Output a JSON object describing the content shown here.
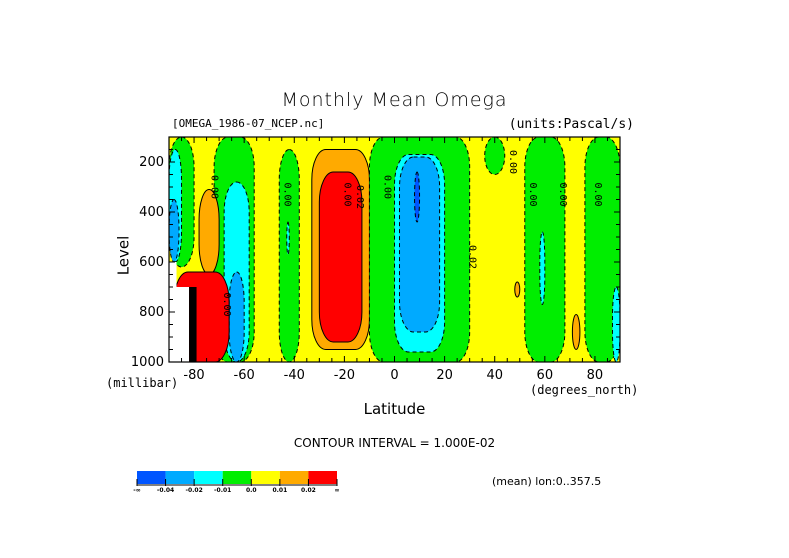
{
  "header": {
    "title": "Monthly Mean Omega",
    "file_label": "[OMEGA_1986-07_NCEP.nc]",
    "units_label": "(units:Pascal/s)"
  },
  "footer": {
    "contour_interval": "CONTOUR INTERVAL = 1.000E-02",
    "mean_lon": "(mean) lon:0..357.5"
  },
  "colors": {
    "lt_-0.04": "#0055ff",
    "-0.04_-0.02": "#00aaff",
    "-0.02_-0.01": "#00ffff",
    "-0.01_0.0": "#00ee00",
    "0.0_0.01": "#ffff00",
    "0.01_0.02": "#ffaa00",
    "gt_0.02": "#ff0000"
  },
  "chart_data": {
    "type": "heatmap",
    "subtype": "filled-contour",
    "title": "Monthly Mean Omega",
    "subtitle_left": "[OMEGA_1986-07_NCEP.nc]",
    "subtitle_right": "(units:Pascal/s)",
    "xlabel": "Latitude",
    "xunits": "(degrees_north)",
    "ylabel": "Level",
    "yunits": "(millibar)",
    "xlim": [
      -90,
      90
    ],
    "ylim": [
      1000,
      100
    ],
    "y_inverted": true,
    "xticks": [
      -80,
      -60,
      -40,
      -20,
      0,
      20,
      40,
      60,
      80
    ],
    "xtick_labels": [
      "-80",
      "-60",
      "-40",
      "-20",
      "0",
      "20",
      "40",
      "60",
      "80"
    ],
    "yticks": [
      200,
      400,
      600,
      800,
      1000
    ],
    "ytick_labels": [
      "200",
      "400",
      "600",
      "800",
      "1000"
    ],
    "contour_interval": 0.01,
    "contour_labels": [
      "0.00",
      "0.00",
      "0.00",
      "0.00",
      "0.02",
      "0.00",
      "0.02",
      "0.00",
      "0.00",
      "0.00",
      "0.00",
      "0.00",
      "0.00"
    ],
    "legend": {
      "type": "colorbar",
      "placement": "bottom-left",
      "boundaries": [
        "-∞",
        "-0.04",
        "-0.02",
        "-0.01",
        "0.0",
        "0.01",
        "0.02",
        "∞"
      ],
      "bins": [
        {
          "range": "< -0.04",
          "color": "#0055ff"
        },
        {
          "range": "-0.04 to -0.02",
          "color": "#00aaff"
        },
        {
          "range": "-0.02 to -0.01",
          "color": "#00ffff"
        },
        {
          "range": "-0.01 to 0.0",
          "color": "#00ee00"
        },
        {
          "range": "0.0 to 0.01",
          "color": "#ffff00"
        },
        {
          "range": "0.01 to 0.02",
          "color": "#ffaa00"
        },
        {
          "range": "> 0.02",
          "color": "#ff0000"
        }
      ]
    },
    "regions": [
      {
        "name": "background-yellow",
        "level": "0.0_0.01",
        "lat": [
          -90,
          90
        ],
        "p": [
          100,
          1000
        ]
      },
      {
        "name": "green-band-sh-polar",
        "level": "-0.01_0.0",
        "lat": [
          -90,
          -80
        ],
        "p": [
          100,
          620
        ]
      },
      {
        "name": "cyan-sh-polar",
        "level": "-0.02_-0.01",
        "lat": [
          -90,
          -85
        ],
        "p": [
          150,
          600
        ]
      },
      {
        "name": "blue-sh-polar",
        "level": "-0.04_-0.02",
        "lat": [
          -90,
          -86
        ],
        "p": [
          350,
          600
        ]
      },
      {
        "name": "green-band-70s",
        "level": "-0.01_0.0",
        "lat": [
          -72,
          -56
        ],
        "p": [
          100,
          1000
        ]
      },
      {
        "name": "orange-sh-75",
        "level": "0.01_0.02",
        "lat": [
          -78,
          -70
        ],
        "p": [
          310,
          650
        ]
      },
      {
        "name": "cyan-sh-62",
        "level": "-0.02_-0.01",
        "lat": [
          -68,
          -58
        ],
        "p": [
          280,
          1000
        ]
      },
      {
        "name": "blue-sh-62",
        "level": "-0.04_-0.02",
        "lat": [
          -66,
          -60
        ],
        "p": [
          640,
          1000
        ]
      },
      {
        "name": "red-sh-antarctic",
        "level": "gt_0.02",
        "lat": [
          -88,
          -66
        ],
        "p": [
          640,
          1000
        ]
      },
      {
        "name": "green-band-45",
        "level": "-0.01_0.0",
        "lat": [
          -46,
          -38
        ],
        "p": [
          150,
          1000
        ]
      },
      {
        "name": "cyan-sh-43",
        "level": "-0.02_-0.01",
        "lat": [
          -43,
          -42
        ],
        "p": [
          440,
          570
        ]
      },
      {
        "name": "orange-sh-25",
        "level": "0.01_0.02",
        "lat": [
          -33,
          -10
        ],
        "p": [
          150,
          950
        ]
      },
      {
        "name": "red-sh-25",
        "level": "gt_0.02",
        "lat": [
          -30,
          -13
        ],
        "p": [
          240,
          920
        ]
      },
      {
        "name": "green-tropics",
        "level": "-0.01_0.0",
        "lat": [
          -10,
          30
        ],
        "p": [
          100,
          1000
        ]
      },
      {
        "name": "cyan-tropics",
        "level": "-0.02_-0.01",
        "lat": [
          0,
          20
        ],
        "p": [
          170,
          960
        ]
      },
      {
        "name": "blue-tropics",
        "level": "-0.04_-0.02",
        "lat": [
          2,
          18
        ],
        "p": [
          180,
          880
        ]
      },
      {
        "name": "dark-blue-tropics",
        "level": "lt_-0.04",
        "lat": [
          8,
          10
        ],
        "p": [
          240,
          440
        ]
      },
      {
        "name": "green-band-36",
        "level": "-0.01_0.0",
        "lat": [
          36,
          44
        ],
        "p": [
          100,
          250
        ]
      },
      {
        "name": "green-band-60",
        "level": "-0.01_0.0",
        "lat": [
          52,
          68
        ],
        "p": [
          100,
          1000
        ]
      },
      {
        "name": "cyan-nh-60",
        "level": "-0.02_-0.01",
        "lat": [
          58,
          60
        ],
        "p": [
          480,
          770
        ]
      },
      {
        "name": "green-band-80",
        "level": "-0.01_0.0",
        "lat": [
          76,
          90
        ],
        "p": [
          100,
          1000
        ]
      },
      {
        "name": "cyan-nh-polar",
        "level": "-0.02_-0.01",
        "lat": [
          87,
          90
        ],
        "p": [
          700,
          1000
        ]
      },
      {
        "name": "orange-nh-46",
        "level": "0.01_0.02",
        "lat": [
          48,
          50
        ],
        "p": [
          680,
          740
        ]
      },
      {
        "name": "orange-nh-72",
        "level": "0.01_0.02",
        "lat": [
          71,
          74
        ],
        "p": [
          810,
          950
        ]
      }
    ],
    "missing_data": {
      "lat": [
        -90,
        -82
      ],
      "p": [
        600,
        1000
      ],
      "color": "#ffffff"
    }
  }
}
